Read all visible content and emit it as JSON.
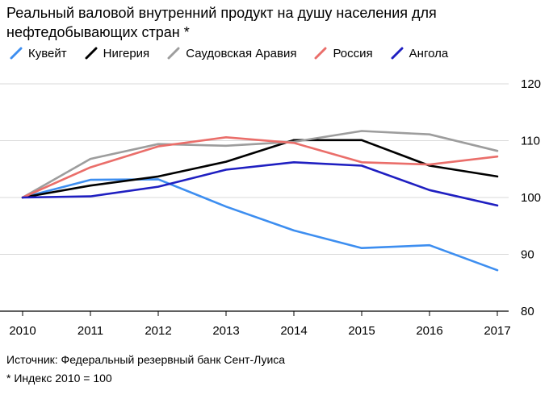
{
  "chart_data": {
    "type": "line",
    "title": "Реальный валовой внутренний продукт на душу населения для нефтедобывающих стран *",
    "xlabel": "",
    "ylabel": "",
    "x": [
      "2010",
      "2011",
      "2012",
      "2013",
      "2014",
      "2015",
      "2016",
      "2017"
    ],
    "ylim": [
      80,
      120
    ],
    "yticks": [
      80,
      90,
      100,
      110,
      120
    ],
    "grid": true,
    "legend_position": "top-left",
    "series": [
      {
        "name": "Кувейт",
        "color": "#3d8ef0",
        "values": [
          100,
          103.1,
          103.2,
          98.4,
          94.2,
          91.1,
          91.6,
          87.2
        ]
      },
      {
        "name": "Нигерия",
        "color": "#000000",
        "values": [
          100,
          102.1,
          103.7,
          106.3,
          110.1,
          110.1,
          105.6,
          103.7
        ]
      },
      {
        "name": "Саудовская Аравия",
        "color": "#9d9d9d",
        "values": [
          100,
          106.8,
          109.4,
          109.1,
          109.8,
          111.7,
          111.1,
          108.2
        ]
      },
      {
        "name": "Россия",
        "color": "#ea6e6a",
        "values": [
          100,
          105.3,
          109.0,
          110.6,
          109.6,
          106.2,
          105.8,
          107.2
        ]
      },
      {
        "name": "Ангола",
        "color": "#1f1fc1",
        "values": [
          100,
          100.2,
          101.9,
          104.9,
          106.2,
          105.6,
          101.3,
          98.6
        ]
      }
    ],
    "source": "Источник: Федеральный резервный банк Сент-Луиса",
    "note": "* Индекс 2010 = 100"
  }
}
